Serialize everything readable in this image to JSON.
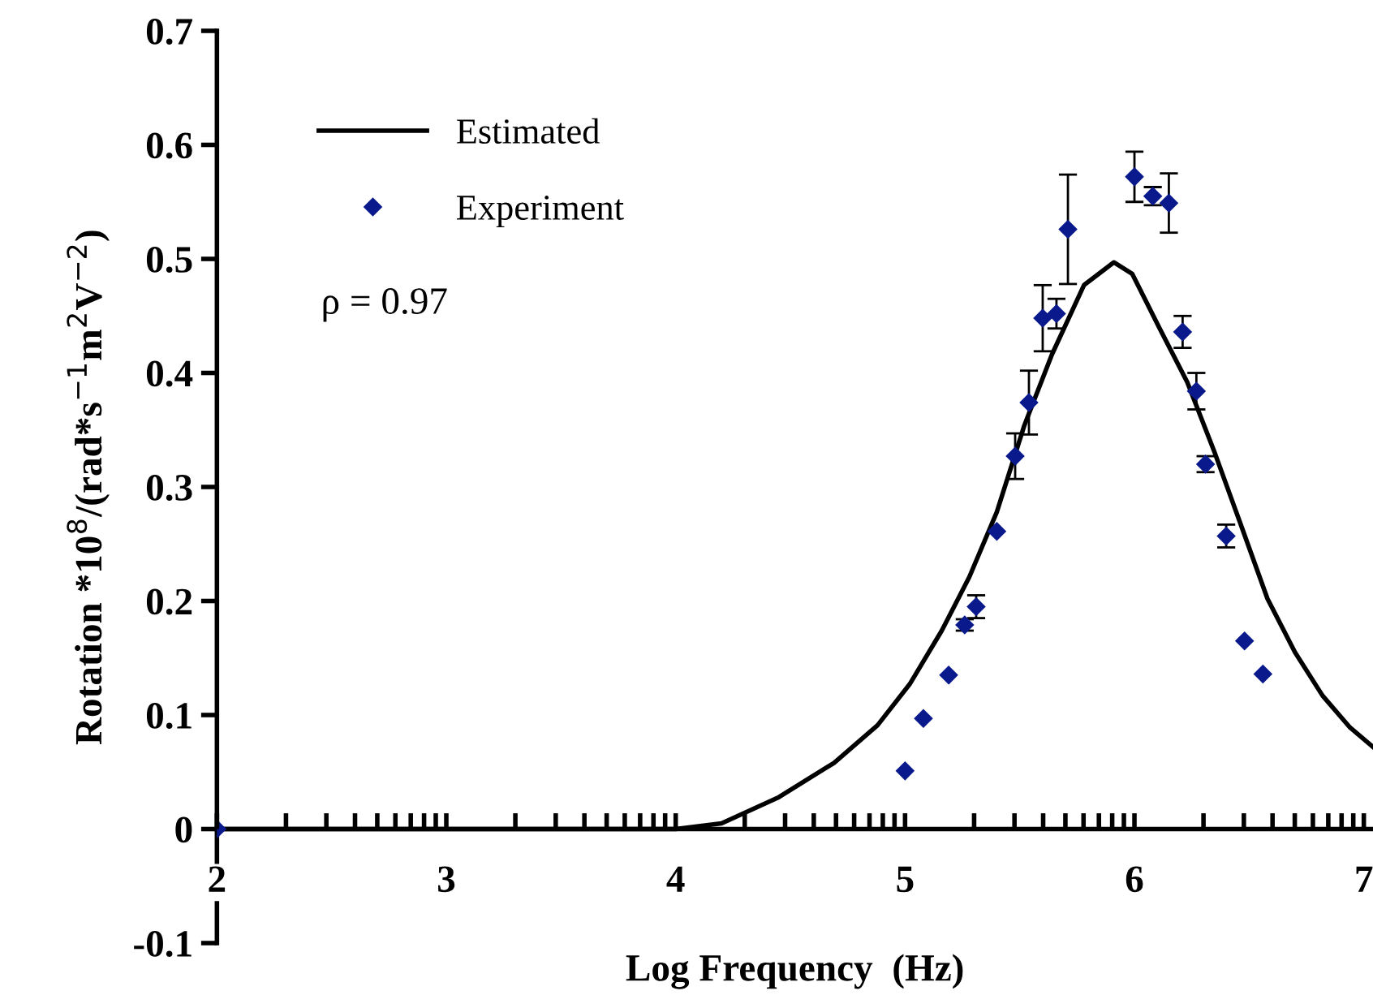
{
  "chart_data": {
    "type": "line",
    "xlabel": "Log Frequency  (Hz)",
    "ylabel": "Rotation *10$^{8}$/(rad*s$^{−1}$m$^{2}$V$^{−2}$)",
    "xlim": [
      2,
      7.04
    ],
    "ylim": [
      -0.1,
      0.7
    ],
    "xticks": [
      2,
      3,
      4,
      5,
      6,
      7,
      {
        "value": 2.301,
        "label": null
      },
      {
        "value": 2.477,
        "label": null
      },
      {
        "value": 2.602,
        "label": null
      },
      {
        "value": 2.699,
        "label": null
      },
      {
        "value": 2.778,
        "label": null
      },
      {
        "value": 2.845,
        "label": null
      },
      {
        "value": 2.903,
        "label": null
      },
      {
        "value": 2.954,
        "label": null
      },
      {
        "value": 3.301,
        "label": null
      },
      {
        "value": 3.477,
        "label": null
      },
      {
        "value": 3.602,
        "label": null
      },
      {
        "value": 3.699,
        "label": null
      },
      {
        "value": 3.778,
        "label": null
      },
      {
        "value": 3.845,
        "label": null
      },
      {
        "value": 3.903,
        "label": null
      },
      {
        "value": 3.954,
        "label": null
      },
      {
        "value": 4.301,
        "label": null
      },
      {
        "value": 4.477,
        "label": null
      },
      {
        "value": 4.602,
        "label": null
      },
      {
        "value": 4.699,
        "label": null
      },
      {
        "value": 4.778,
        "label": null
      },
      {
        "value": 4.845,
        "label": null
      },
      {
        "value": 4.903,
        "label": null
      },
      {
        "value": 4.954,
        "label": null
      },
      {
        "value": 5.301,
        "label": null
      },
      {
        "value": 5.477,
        "label": null
      },
      {
        "value": 5.602,
        "label": null
      },
      {
        "value": 5.699,
        "label": null
      },
      {
        "value": 5.778,
        "label": null
      },
      {
        "value": 5.845,
        "label": null
      },
      {
        "value": 5.903,
        "label": null
      },
      {
        "value": 5.954,
        "label": null
      },
      {
        "value": 6.301,
        "label": null
      },
      {
        "value": 6.477,
        "label": null
      },
      {
        "value": 6.602,
        "label": null
      },
      {
        "value": 6.699,
        "label": null
      },
      {
        "value": 6.778,
        "label": null
      },
      {
        "value": 6.845,
        "label": null
      },
      {
        "value": 6.903,
        "label": null
      },
      {
        "value": 6.954,
        "label": null
      }
    ],
    "yticks": [
      {
        "value": -0.1,
        "label": "-0.1"
      },
      0,
      0.1,
      0.2,
      0.3,
      0.4,
      0.5,
      0.6,
      0.7
    ],
    "grid": false,
    "legend": "top left",
    "annotations": [
      "ρ = 0.97"
    ],
    "series": [
      {
        "name": "Estimated",
        "color": "#000000",
        "marker": "none",
        "line_style": "solid",
        "x": [
          2,
          3,
          4.0,
          4.2,
          4.45,
          4.69,
          4.88,
          5.02,
          5.16,
          5.28,
          5.4,
          5.52,
          5.64,
          5.78,
          5.91,
          5.99,
          6.11,
          6.23,
          6.35,
          6.46,
          6.58,
          6.7,
          6.82,
          6.94,
          7.04
        ],
        "values": [
          0,
          0,
          0,
          0.005,
          0.028,
          0.058,
          0.091,
          0.127,
          0.174,
          0.221,
          0.278,
          0.354,
          0.416,
          0.477,
          0.497,
          0.487,
          0.439,
          0.392,
          0.33,
          0.269,
          0.202,
          0.155,
          0.117,
          0.089,
          0.072
        ]
      },
      {
        "name": "Experiment",
        "type": "scatter",
        "color": "#0a1a8c",
        "marker": "diamond",
        "x": [
          2,
          5.0,
          5.08,
          5.19,
          5.26,
          5.31,
          5.4,
          5.48,
          5.54,
          5.6,
          5.66,
          5.71,
          6.0,
          6.08,
          6.15,
          6.21,
          6.27,
          6.31,
          6.4,
          6.48,
          6.56
        ],
        "values": [
          0,
          0.051,
          0.097,
          0.135,
          0.179,
          0.195,
          0.261,
          0.327,
          0.374,
          0.448,
          0.452,
          0.526,
          0.572,
          0.555,
          0.549,
          0.436,
          0.384,
          0.32,
          0.257,
          0.165,
          0.136
        ],
        "errors": [
          null,
          null,
          null,
          null,
          0.005,
          0.01,
          null,
          0.02,
          0.028,
          0.029,
          0.013,
          0.048,
          0.022,
          0.008,
          0.026,
          0.014,
          0.016,
          0.007,
          0.01,
          null,
          null
        ]
      }
    ]
  }
}
